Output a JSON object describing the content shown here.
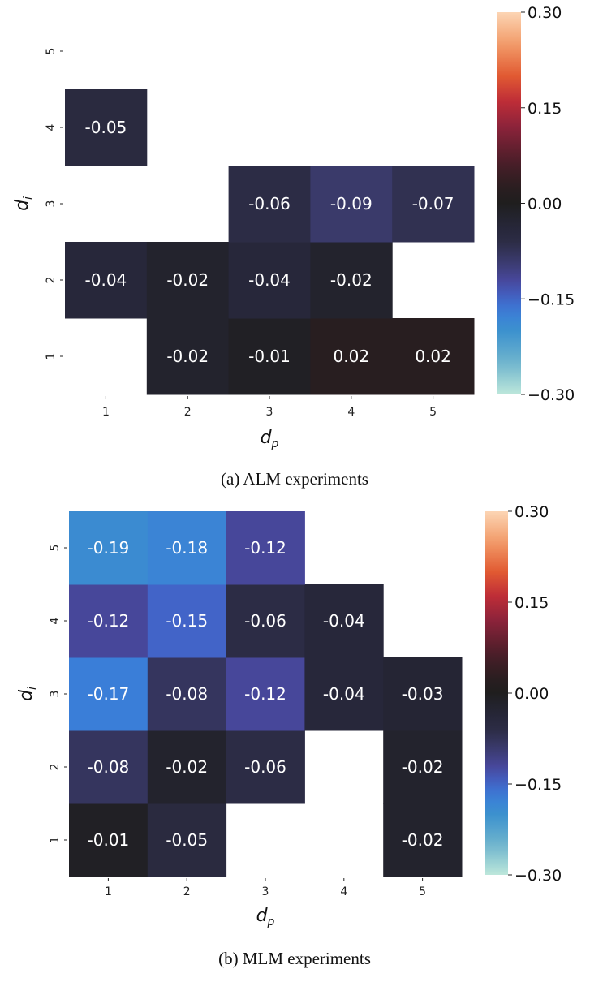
{
  "chart_data": [
    {
      "type": "heatmap",
      "caption": "(a) ALM experiments",
      "xlabel": "d_p",
      "ylabel": "d_i",
      "x_categories": [
        "1",
        "2",
        "3",
        "4",
        "5"
      ],
      "y_categories": [
        "1",
        "2",
        "3",
        "4",
        "5"
      ],
      "values": {
        "5": [
          null,
          null,
          null,
          null,
          null
        ],
        "4": [
          -0.05,
          null,
          null,
          null,
          null
        ],
        "3": [
          null,
          null,
          -0.06,
          -0.09,
          -0.07
        ],
        "2": [
          -0.04,
          -0.02,
          -0.04,
          -0.02,
          null
        ],
        "1": [
          null,
          -0.02,
          -0.01,
          0.02,
          0.02
        ]
      },
      "colorbar": {
        "range": [
          -0.3,
          0.3
        ],
        "ticks": [
          "0.30",
          "0.15",
          "0.00",
          "−0.15",
          "−0.30"
        ],
        "colormap": "icefire"
      }
    },
    {
      "type": "heatmap",
      "caption": "(b) MLM experiments",
      "xlabel": "d_p",
      "ylabel": "d_i",
      "x_categories": [
        "1",
        "2",
        "3",
        "4",
        "5"
      ],
      "y_categories": [
        "1",
        "2",
        "3",
        "4",
        "5"
      ],
      "values": {
        "5": [
          -0.19,
          -0.18,
          -0.12,
          null,
          null
        ],
        "4": [
          -0.12,
          -0.15,
          -0.06,
          -0.04,
          null
        ],
        "3": [
          -0.17,
          -0.08,
          -0.12,
          -0.04,
          -0.03
        ],
        "2": [
          -0.08,
          -0.02,
          -0.06,
          null,
          -0.02
        ],
        "1": [
          -0.01,
          -0.05,
          null,
          null,
          -0.02
        ]
      },
      "colorbar": {
        "range": [
          -0.3,
          0.3
        ],
        "ticks": [
          "0.30",
          "0.15",
          "0.00",
          "−0.15",
          "−0.30"
        ],
        "colormap": "icefire"
      }
    }
  ]
}
